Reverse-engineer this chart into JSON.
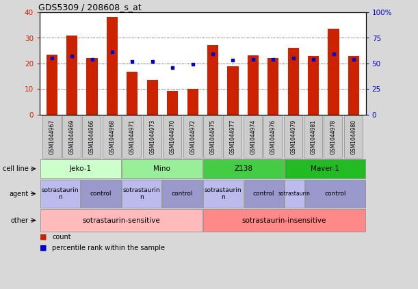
{
  "title": "GDS5309 / 208608_s_at",
  "samples": [
    "GSM1044967",
    "GSM1044969",
    "GSM1044966",
    "GSM1044968",
    "GSM1044971",
    "GSM1044973",
    "GSM1044970",
    "GSM1044972",
    "GSM1044975",
    "GSM1044977",
    "GSM1044974",
    "GSM1044976",
    "GSM1044979",
    "GSM1044981",
    "GSM1044978",
    "GSM1044980"
  ],
  "bar_values": [
    23.5,
    30.8,
    22.0,
    38.0,
    16.8,
    13.7,
    9.2,
    10.1,
    27.3,
    19.0,
    23.2,
    22.0,
    26.0,
    22.8,
    33.5,
    23.0
  ],
  "dot_percentiles": [
    55,
    57,
    54,
    61,
    52,
    52,
    46,
    49,
    59,
    53,
    54,
    54,
    55,
    54,
    59,
    54
  ],
  "bar_color": "#cc2200",
  "dot_color": "#0000cc",
  "ylim_left": [
    0,
    40
  ],
  "ylim_right": [
    0,
    100
  ],
  "yticks_left": [
    0,
    10,
    20,
    30,
    40
  ],
  "ytick_labels_left": [
    "0",
    "10",
    "20",
    "30",
    "40"
  ],
  "yticks_right": [
    0,
    25,
    50,
    75,
    100
  ],
  "ytick_labels_right": [
    "0",
    "25",
    "50",
    "75",
    "100%"
  ],
  "cell_line_groups": [
    {
      "label": "Jeko-1",
      "start": 0,
      "end": 4,
      "color": "#ccffcc"
    },
    {
      "label": "Mino",
      "start": 4,
      "end": 8,
      "color": "#99ee99"
    },
    {
      "label": "Z138",
      "start": 8,
      "end": 12,
      "color": "#44cc44"
    },
    {
      "label": "Maver-1",
      "start": 12,
      "end": 16,
      "color": "#22bb22"
    }
  ],
  "agent_groups": [
    {
      "label": "sotrastaurin\nn",
      "start": 0,
      "end": 2,
      "color": "#bbbbee"
    },
    {
      "label": "control",
      "start": 2,
      "end": 4,
      "color": "#9999cc"
    },
    {
      "label": "sotrastaurin\nn",
      "start": 4,
      "end": 6,
      "color": "#bbbbee"
    },
    {
      "label": "control",
      "start": 6,
      "end": 8,
      "color": "#9999cc"
    },
    {
      "label": "sotrastaurin\nn",
      "start": 8,
      "end": 10,
      "color": "#bbbbee"
    },
    {
      "label": "control",
      "start": 10,
      "end": 12,
      "color": "#9999cc"
    },
    {
      "label": "sotrastaurin",
      "start": 12,
      "end": 13,
      "color": "#bbbbee"
    },
    {
      "label": "control",
      "start": 13,
      "end": 16,
      "color": "#9999cc"
    }
  ],
  "other_groups": [
    {
      "label": "sotrastaurin-sensitive",
      "start": 0,
      "end": 8,
      "color": "#ffbbbb"
    },
    {
      "label": "sotrastaurin-insensitive",
      "start": 8,
      "end": 16,
      "color": "#ff8888"
    }
  ],
  "bg_color": "#d8d8d8",
  "plot_bg": "#ffffff",
  "grid_color": "#000000",
  "tick_bg": "#bbbbbb"
}
